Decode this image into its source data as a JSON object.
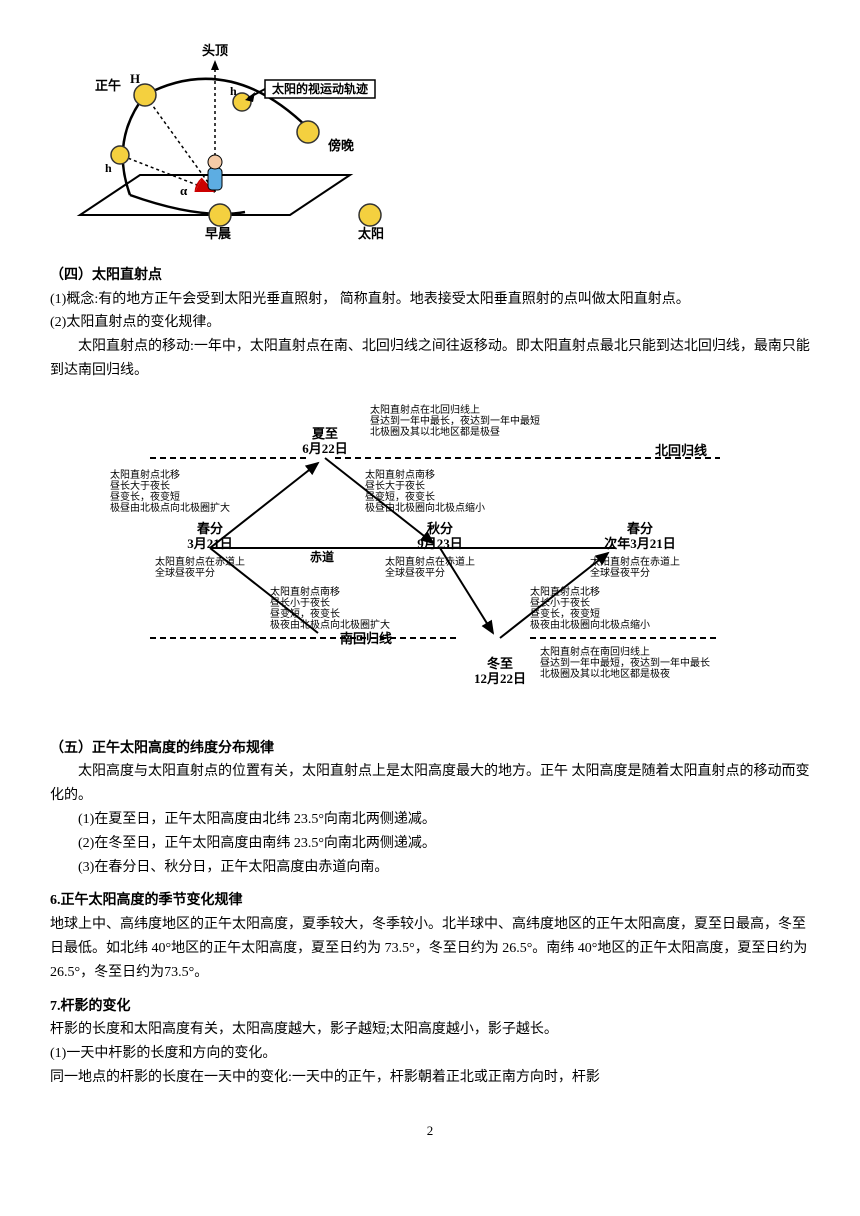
{
  "diagram1": {
    "labels": {
      "top": "头顶",
      "noon": "正午",
      "H": "H",
      "h1": "h",
      "h2": "h",
      "alpha": "α",
      "trajectory": "太阳的视运动轨迹",
      "evening": "傍晚",
      "morning": "早晨",
      "sun": "太阳"
    },
    "colors": {
      "sun_fill": "#f4d03f",
      "sun_stroke": "#333333",
      "plane_fill": "#ffffff",
      "plane_stroke": "#000000",
      "trajectory": "#000000",
      "angle_fill": "#cc0000",
      "person_body": "#5dade2",
      "person_head": "#f5cba7",
      "label_box_fill": "#ffffff",
      "label_box_stroke": "#000000"
    }
  },
  "section4": {
    "title": "（四）太阳直射点",
    "p1": "(1)概念:有的地方正午会受到太阳光垂直照射，  简称直射。地表接受太阳垂直照射的点叫做太阳直射点。",
    "p2": "(2)太阳直射点的变化规律。",
    "p3": "太阳直射点的移动:一年中，太阳直射点在南、北回归线之间往返移动。即太阳直射点最北只能到达北回归线，最南只能到达南回归线。"
  },
  "diagram2": {
    "nodes": {
      "summer": {
        "title": "夏至",
        "date": "6月22日"
      },
      "spring1": {
        "title": "春分",
        "date": "3月21日"
      },
      "autumn": {
        "title": "秋分",
        "date": "9月23日"
      },
      "spring2": {
        "title": "春分",
        "date": "次年3月21日"
      },
      "winter": {
        "title": "冬至",
        "date": "12月22日"
      }
    },
    "lines": {
      "tropic_cancer": "北回归线",
      "equator": "赤道",
      "tropic_capricorn": "南回归线"
    },
    "annotations": {
      "summer_left": "太阳直射点在北回归线上\n昼达到一年中最长，夜达到一年中最短\n北极圈及其以北地区都是极昼",
      "edge1": "太阳直射点北移\n昼长大于夜长\n昼变长，夜变短\n极昼由北极点向北极圈扩大",
      "edge2": "太阳直射点南移\n昼长大于夜长\n昼变短，夜变长\n极昼由北极圈向北极点缩小",
      "spring1_below": "太阳直射点在赤道上\n全球昼夜平分",
      "autumn_below": "太阳直射点在赤道上\n全球昼夜平分",
      "spring2_below": "太阳直射点在赤道上\n全球昼夜平分",
      "edge3": "太阳直射点南移\n昼长小于夜长\n昼变短，夜变长\n极夜由北极点向北极圈扩大",
      "edge4": "太阳直射点北移\n昼长小于夜长\n昼变长，夜变短\n极夜由北极圈向北极点缩小",
      "winter_right": "太阳直射点在南回归线上\n昼达到一年中最短，夜达到一年中最长\n北极圈及其以北地区都是极夜"
    },
    "fontsize_title": 13,
    "fontsize_anno": 10
  },
  "section5": {
    "title": "（五）正午太阳高度的纬度分布规律",
    "p1": "太阳高度与太阳直射点的位置有关，太阳直射点上是太阳高度最大的地方。正午 太阳高度是随着太阳直射点的移动而变化的。",
    "p2": "(1)在夏至日，正午太阳高度由北纬 23.5°向南北两侧递减。",
    "p3": "(2)在冬至日，正午太阳高度由南纬 23.5°向南北两侧递减。",
    "p4": "(3)在春分日、秋分日，正午太阳高度由赤道向南。"
  },
  "section6": {
    "title": "6.正午太阳高度的季节变化规律",
    "p1": "地球上中、高纬度地区的正午太阳高度，夏季较大，冬季较小。北半球中、高纬度地区的正午太阳高度，夏至日最高，冬至日最低。如北纬 40°地区的正午太阳高度，夏至日约为 73.5°，冬至日约为 26.5°。南纬 40°地区的正午太阳高度，夏至日约为 26.5°，冬至日约为73.5°。"
  },
  "section7": {
    "title": "7.杆影的变化",
    "p1": "杆影的长度和太阳高度有关，太阳高度越大，影子越短;太阳高度越小，影子越长。",
    "p2": "(1)一天中杆影的长度和方向的变化。",
    "p3": "同一地点的杆影的长度在一天中的变化:一天中的正午，杆影朝着正北或正南方向时，杆影"
  },
  "page_number": "2"
}
